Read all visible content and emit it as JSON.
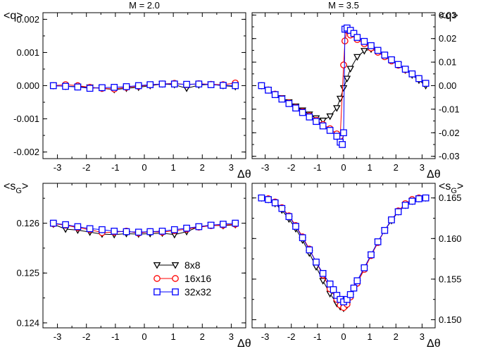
{
  "chart_data": [
    {
      "type": "line",
      "panel": "top-left",
      "title": "M = 2.0",
      "xlabel": "Δθ",
      "ylabel": "<q>",
      "xlim": [
        -3.5,
        3.5
      ],
      "ylim": [
        -0.0022,
        0.0022
      ],
      "xticks": [
        "-3",
        "-2",
        "-1",
        "0",
        "1",
        "2",
        "3"
      ],
      "yticks": [
        "-0.002",
        "-0.001",
        "0.000",
        "0.001",
        "0.002"
      ],
      "ytick_values": [
        -0.002,
        -0.001,
        0.0,
        0.001,
        0.002
      ],
      "series": [
        {
          "name": "8x8",
          "x": [
            -3.14,
            -2.72,
            -2.3,
            -1.88,
            -1.46,
            -1.04,
            -0.62,
            -0.2,
            0.2,
            0.62,
            1.04,
            1.46,
            1.88,
            2.3,
            2.72,
            3.14
          ],
          "y": [
            0.0,
            -2e-05,
            -3e-05,
            -5e-05,
            -8e-05,
            -0.00012,
            -8e-05,
            -5e-05,
            0.0,
            5e-05,
            3e-05,
            -8e-05,
            2e-05,
            4e-05,
            0.0,
            -3e-05
          ]
        },
        {
          "name": "16x16",
          "x": [
            -3.14,
            -2.72,
            -2.3,
            -1.88,
            -1.46,
            -1.04,
            -0.62,
            -0.2,
            0.2,
            0.62,
            1.04,
            1.46,
            1.88,
            2.3,
            2.72,
            3.14
          ],
          "y": [
            0.0,
            3e-05,
            0.0,
            -5e-05,
            -8e-05,
            -0.0001,
            -5e-05,
            -2e-05,
            2e-05,
            5e-05,
            7e-05,
            3e-05,
            6e-05,
            4e-05,
            3e-05,
            8e-05
          ]
        },
        {
          "name": "32x32",
          "x": [
            -3.14,
            -2.72,
            -2.3,
            -1.88,
            -1.46,
            -1.04,
            -0.62,
            -0.2,
            0.2,
            0.62,
            1.04,
            1.46,
            1.88,
            2.3,
            2.72,
            3.14
          ],
          "y": [
            0.0,
            -2e-05,
            -4e-05,
            -8e-05,
            -6e-05,
            -5e-05,
            -3e-05,
            0.0,
            3e-05,
            5e-05,
            5e-05,
            4e-05,
            5e-05,
            3e-05,
            1e-05,
            0.0
          ]
        }
      ]
    },
    {
      "type": "line",
      "panel": "top-right",
      "title": "M = 3.5",
      "xlabel": "Δθ",
      "ylabel": "<q>",
      "xlim": [
        -3.5,
        3.5
      ],
      "ylim": [
        -0.031,
        0.031
      ],
      "xticks": [
        "-3",
        "-2",
        "-1",
        "0",
        "1",
        "2",
        "3"
      ],
      "yticks": [
        "-0.03",
        "-0.02",
        "-0.01",
        "0.00",
        "0.01",
        "0.02",
        "0.03"
      ],
      "ytick_values": [
        -0.03,
        -0.02,
        -0.01,
        0.0,
        0.01,
        0.02,
        0.03
      ],
      "series": [
        {
          "name": "8x8",
          "x": [
            -3.14,
            -2.88,
            -2.62,
            -2.36,
            -2.09,
            -1.83,
            -1.57,
            -1.31,
            -1.05,
            -0.79,
            -0.52,
            -0.26,
            -0.13,
            0.0,
            0.13,
            0.26,
            0.52,
            0.79,
            1.05,
            1.31,
            1.57,
            1.83,
            2.09,
            2.36,
            2.62,
            2.88,
            3.14
          ],
          "y": [
            0.0,
            -0.0018,
            -0.0036,
            -0.0053,
            -0.007,
            -0.0088,
            -0.0105,
            -0.0122,
            -0.0138,
            -0.0148,
            -0.013,
            -0.0095,
            -0.0055,
            -0.001,
            0.003,
            0.0072,
            0.0122,
            0.0148,
            0.0155,
            0.0145,
            0.0128,
            0.0108,
            0.0088,
            0.0066,
            0.0045,
            0.0023,
            0.0
          ]
        },
        {
          "name": "16x16",
          "x": [
            -3.14,
            -2.88,
            -2.62,
            -2.36,
            -2.09,
            -1.83,
            -1.57,
            -1.31,
            -1.05,
            -0.79,
            -0.52,
            -0.26,
            -0.13,
            0.0,
            0.05,
            0.13,
            0.26,
            0.52,
            0.79,
            1.05,
            1.31,
            1.57,
            1.83,
            2.09,
            2.36,
            2.62,
            2.88,
            3.14
          ],
          "y": [
            0.0,
            -0.0018,
            -0.0036,
            -0.0055,
            -0.0073,
            -0.0092,
            -0.011,
            -0.0128,
            -0.0147,
            -0.0165,
            -0.0183,
            -0.0205,
            -0.0215,
            0.0088,
            0.019,
            0.0235,
            0.0215,
            0.0196,
            0.0178,
            0.016,
            0.0142,
            0.0123,
            0.0105,
            0.0087,
            0.0068,
            0.005,
            0.003,
            0.001
          ]
        },
        {
          "name": "32x32",
          "x": [
            -3.14,
            -2.88,
            -2.62,
            -2.36,
            -2.09,
            -1.83,
            -1.57,
            -1.31,
            -1.05,
            -0.79,
            -0.52,
            -0.26,
            -0.13,
            -0.05,
            0.0,
            0.05,
            0.13,
            0.26,
            0.39,
            0.52,
            0.79,
            1.05,
            1.31,
            1.57,
            1.83,
            2.09,
            2.36,
            2.62,
            2.88,
            3.14
          ],
          "y": [
            0.0,
            -0.0019,
            -0.0038,
            -0.0057,
            -0.0076,
            -0.0095,
            -0.0114,
            -0.0133,
            -0.0152,
            -0.0171,
            -0.019,
            -0.0215,
            -0.024,
            -0.025,
            -0.02,
            0.024,
            0.0245,
            0.0235,
            0.0222,
            0.0205,
            0.0188,
            0.017,
            0.015,
            0.013,
            0.011,
            0.009,
            0.007,
            0.005,
            0.003,
            0.001
          ]
        }
      ]
    },
    {
      "type": "line",
      "panel": "bottom-left",
      "title": "",
      "xlabel": "Δθ",
      "ylabel": "<s",
      "ylabel_sub": "G",
      "ylabel_end": ">",
      "xlim": [
        -3.5,
        3.5
      ],
      "ylim": [
        0.1239,
        0.1268
      ],
      "xticks": [
        "-3",
        "-2",
        "-1",
        "0",
        "1",
        "2",
        "3"
      ],
      "yticks": [
        "0.124",
        "0.125",
        "0.126"
      ],
      "ytick_values": [
        0.124,
        0.125,
        0.126
      ],
      "series": [
        {
          "name": "8x8",
          "x": [
            -3.14,
            -2.72,
            -2.3,
            -1.88,
            -1.46,
            -1.04,
            -0.62,
            -0.2,
            0.2,
            0.62,
            1.04,
            1.46,
            1.88,
            2.3,
            2.72,
            3.14
          ],
          "y": [
            0.12598,
            0.12588,
            0.12586,
            0.12582,
            0.12578,
            0.12577,
            0.12579,
            0.12578,
            0.12579,
            0.1258,
            0.12577,
            0.12583,
            0.12593,
            0.12596,
            0.12595,
            0.12597
          ]
        },
        {
          "name": "16x16",
          "x": [
            -3.14,
            -2.72,
            -2.3,
            -1.88,
            -1.46,
            -1.04,
            -0.62,
            -0.2,
            0.2,
            0.62,
            1.04,
            1.46,
            1.88,
            2.3,
            2.72,
            3.14
          ],
          "y": [
            0.12599,
            0.12596,
            0.12591,
            0.12587,
            0.12581,
            0.12582,
            0.12584,
            0.1258,
            0.12583,
            0.12582,
            0.12585,
            0.12588,
            0.12592,
            0.12595,
            0.12596,
            0.12598
          ]
        },
        {
          "name": "32x32",
          "x": [
            -3.14,
            -2.72,
            -2.3,
            -1.88,
            -1.46,
            -1.04,
            -0.62,
            -0.2,
            0.2,
            0.62,
            1.04,
            1.46,
            1.88,
            2.3,
            2.72,
            3.14
          ],
          "y": [
            0.126,
            0.12597,
            0.12593,
            0.12589,
            0.12587,
            0.12584,
            0.12583,
            0.12582,
            0.12583,
            0.12584,
            0.12587,
            0.1259,
            0.12593,
            0.12596,
            0.12598,
            0.126
          ]
        }
      ],
      "legend": {
        "position": "bottom-right",
        "entries": [
          "8x8",
          "16x16",
          "32x32"
        ]
      }
    },
    {
      "type": "line",
      "panel": "bottom-right",
      "title": "",
      "xlabel": "Δθ",
      "ylabel": "<s",
      "ylabel_sub": "G",
      "ylabel_end": ">",
      "xlim": [
        -3.5,
        3.5
      ],
      "ylim": [
        0.149,
        0.1668
      ],
      "xticks": [
        "-3",
        "-2",
        "-1",
        "0",
        "1",
        "2",
        "3"
      ],
      "yticks": [
        "0.150",
        "0.155",
        "0.160",
        "0.165"
      ],
      "ytick_values": [
        0.15,
        0.155,
        0.16,
        0.165
      ],
      "series": [
        {
          "name": "8x8",
          "x": [
            -3.14,
            -2.88,
            -2.62,
            -2.36,
            -2.09,
            -1.83,
            -1.57,
            -1.31,
            -1.05,
            -0.79,
            -0.52,
            -0.26,
            -0.13,
            0.0,
            0.13,
            0.26,
            0.52,
            0.79,
            1.05,
            1.31,
            1.57,
            1.83,
            2.09,
            2.36,
            2.62,
            2.88,
            3.14
          ],
          "y": [
            0.165,
            0.1648,
            0.1643,
            0.1635,
            0.1624,
            0.1612,
            0.1598,
            0.1582,
            0.1565,
            0.1548,
            0.1532,
            0.152,
            0.1516,
            0.1514,
            0.1518,
            0.1528,
            0.1545,
            0.1563,
            0.158,
            0.1596,
            0.161,
            0.1622,
            0.1633,
            0.1641,
            0.1646,
            0.1649,
            0.165
          ]
        },
        {
          "name": "16x16",
          "x": [
            -3.14,
            -2.88,
            -2.62,
            -2.36,
            -2.09,
            -1.83,
            -1.57,
            -1.31,
            -1.05,
            -0.79,
            -0.52,
            -0.26,
            -0.13,
            0.0,
            0.13,
            0.26,
            0.52,
            0.79,
            1.05,
            1.31,
            1.57,
            1.83,
            2.09,
            2.36,
            2.62,
            2.88,
            3.14
          ],
          "y": [
            0.165,
            0.1649,
            0.1645,
            0.1638,
            0.1628,
            0.1616,
            0.1602,
            0.1587,
            0.1571,
            0.1555,
            0.1538,
            0.1525,
            0.1518,
            0.1515,
            0.1519,
            0.1528,
            0.1545,
            0.1562,
            0.1579,
            0.1595,
            0.161,
            0.1623,
            0.1634,
            0.1643,
            0.1648,
            0.165,
            0.165
          ]
        },
        {
          "name": "32x32",
          "x": [
            -3.14,
            -2.88,
            -2.62,
            -2.36,
            -2.09,
            -1.83,
            -1.57,
            -1.31,
            -1.05,
            -0.79,
            -0.52,
            -0.39,
            -0.26,
            -0.13,
            0.0,
            0.13,
            0.26,
            0.39,
            0.52,
            0.79,
            1.05,
            1.31,
            1.57,
            1.83,
            2.09,
            2.36,
            2.62,
            2.88,
            3.14
          ],
          "y": [
            0.165,
            0.1648,
            0.1644,
            0.1637,
            0.1627,
            0.1615,
            0.1601,
            0.1586,
            0.1571,
            0.1557,
            0.1544,
            0.1537,
            0.153,
            0.1525,
            0.1522,
            0.1525,
            0.1531,
            0.1539,
            0.1548,
            0.1564,
            0.158,
            0.1596,
            0.161,
            0.1623,
            0.1633,
            0.1641,
            0.1646,
            0.1649,
            0.165
          ]
        }
      ]
    }
  ],
  "series_styles": [
    {
      "name": "8x8",
      "color": "#000000",
      "marker": "triangle-down"
    },
    {
      "name": "16x16",
      "color": "#ff0000",
      "marker": "circle"
    },
    {
      "name": "32x32",
      "color": "#0000ff",
      "marker": "square"
    }
  ]
}
